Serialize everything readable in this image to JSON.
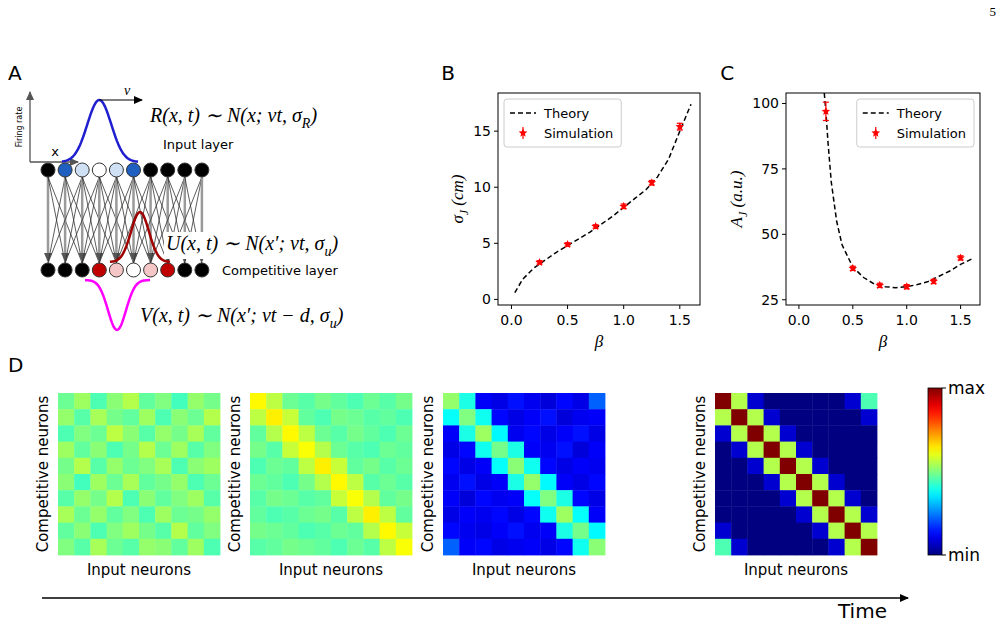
{
  "page_number": "5",
  "panel_a": {
    "letter": "A",
    "y_axis_label": "Firing rate",
    "x_axis_label": "x",
    "velocity_label": "v",
    "input_layer": {
      "label": "Input layer",
      "neuron_colors": [
        "#000000",
        "#1f5fbf",
        "#cfe0f5",
        "#ffffff",
        "#cfe0f5",
        "#1f5fbf",
        "#000000",
        "#000000",
        "#000000",
        "#000000"
      ]
    },
    "competitive_layer": {
      "label": "Competitive layer",
      "neuron_colors": [
        "#000000",
        "#000000",
        "#000000",
        "#c00000",
        "#f5c6c6",
        "#ffffff",
        "#f5c6c6",
        "#c00000",
        "#000000",
        "#000000"
      ]
    },
    "r_equation": [
      {
        "text": "R(x, t) ∼ N(x;  vt, σ"
      },
      {
        "text": "R",
        "sub": true
      },
      {
        "text": ")"
      }
    ],
    "u_equation": [
      {
        "text": "U(x, t) ∼ N(x′; vt, σ"
      },
      {
        "text": "u",
        "sub": true
      },
      {
        "text": ")"
      }
    ],
    "v_equation": [
      {
        "text": "V(x, t) ∼ N(x′; vt − d, σ"
      },
      {
        "text": "u",
        "sub": true
      },
      {
        "text": ")"
      }
    ]
  },
  "chart_data": [
    {
      "panel_label": "B",
      "type": "line",
      "x_label": [
        {
          "text": "β"
        }
      ],
      "y_label": [
        {
          "text": "σ"
        },
        {
          "text": "J",
          "sub": true
        },
        {
          "text": " (cm)"
        }
      ],
      "xlim": [
        -0.12,
        1.68
      ],
      "ylim": [
        -0.5,
        18.4
      ],
      "xticks": [
        {
          "value": 0,
          "label": "0.0"
        },
        {
          "value": 0.5,
          "label": "0.5"
        },
        {
          "value": 1,
          "label": "1.0"
        },
        {
          "value": 1.5,
          "label": "1.5"
        }
      ],
      "yticks": [
        0,
        5,
        10,
        15
      ],
      "legend": "upper left",
      "series": [
        {
          "name": "Theory",
          "color": "#000000",
          "type": "line",
          "line_style": "dashed",
          "x": [
            0.03,
            0.1,
            0.2,
            0.3,
            0.4,
            0.5,
            0.6,
            0.7,
            0.8,
            0.9,
            1.0,
            1.1,
            1.2,
            1.3,
            1.4,
            1.5,
            1.55,
            1.6
          ],
          "values": [
            0.6,
            1.8,
            2.8,
            3.5,
            4.2,
            4.8,
            5.4,
            6.0,
            6.7,
            7.4,
            8.2,
            9.0,
            9.8,
            10.9,
            12.5,
            15.0,
            16.2,
            17.4
          ]
        },
        {
          "name": "Simulation",
          "color": "#ff0000",
          "type": "scatter",
          "marker": "star",
          "x": [
            0.25,
            0.5,
            0.75,
            1.0,
            1.25,
            1.5
          ],
          "values": [
            3.3,
            4.9,
            6.5,
            8.3,
            10.4,
            15.4
          ],
          "errors": [
            0.15,
            0.15,
            0.15,
            0.2,
            0.2,
            0.3
          ]
        }
      ]
    },
    {
      "panel_label": "C",
      "type": "line",
      "x_label": [
        {
          "text": "β"
        }
      ],
      "y_label": [
        {
          "text": "A"
        },
        {
          "text": "J",
          "sub": true
        },
        {
          "text": " (a.u.)"
        }
      ],
      "xlim": [
        -0.12,
        1.68
      ],
      "ylim": [
        23,
        104
      ],
      "xticks": [
        {
          "value": 0,
          "label": "0.0"
        },
        {
          "value": 0.5,
          "label": "0.5"
        },
        {
          "value": 1,
          "label": "1.0"
        },
        {
          "value": 1.5,
          "label": "1.5"
        }
      ],
      "yticks": [
        25,
        50,
        75,
        100
      ],
      "legend": "upper right",
      "series": [
        {
          "name": "Theory",
          "color": "#000000",
          "type": "line",
          "line_style": "dashed",
          "x": [
            0.235,
            0.25,
            0.27,
            0.3,
            0.35,
            0.4,
            0.5,
            0.6,
            0.7,
            0.8,
            0.9,
            1.0,
            1.1,
            1.2,
            1.3,
            1.4,
            1.5,
            1.6
          ],
          "values": [
            104,
            97,
            85,
            70,
            55,
            46,
            37.5,
            33.5,
            31,
            30,
            29.6,
            30,
            30.8,
            32,
            34,
            36,
            38.5,
            40.5
          ]
        },
        {
          "name": "Simulation",
          "color": "#ff0000",
          "type": "scatter",
          "marker": "star",
          "x": [
            0.25,
            0.5,
            0.75,
            1.0,
            1.25,
            1.5
          ],
          "values": [
            97,
            37,
            30.5,
            30,
            32,
            41
          ],
          "errors": [
            3.5,
            0.8,
            0.8,
            0.8,
            0.8,
            0.8
          ]
        }
      ]
    }
  ],
  "panel_d": {
    "letter": "D",
    "time_label": "Time",
    "colorbar": {
      "range": [
        0,
        1
      ],
      "ticks": [
        {
          "value": 0,
          "label": "min"
        },
        {
          "value": 1,
          "label": "max"
        }
      ]
    },
    "heatmaps": [
      {
        "y_label": "Competitive neurons",
        "x_label": "Input neurons",
        "cells": [
          [
            0.48,
            0.53,
            0.45,
            0.51,
            0.55,
            0.47,
            0.5,
            0.44,
            0.52,
            0.49
          ],
          [
            0.52,
            0.46,
            0.54,
            0.49,
            0.47,
            0.53,
            0.45,
            0.51,
            0.48,
            0.55
          ],
          [
            0.45,
            0.5,
            0.48,
            0.56,
            0.51,
            0.46,
            0.52,
            0.49,
            0.54,
            0.47
          ],
          [
            0.53,
            0.47,
            0.51,
            0.45,
            0.49,
            0.55,
            0.48,
            0.53,
            0.46,
            0.5
          ],
          [
            0.49,
            0.55,
            0.46,
            0.52,
            0.48,
            0.5,
            0.54,
            0.45,
            0.51,
            0.53
          ],
          [
            0.51,
            0.44,
            0.53,
            0.48,
            0.54,
            0.47,
            0.49,
            0.52,
            0.45,
            0.48
          ],
          [
            0.46,
            0.52,
            0.49,
            0.55,
            0.45,
            0.51,
            0.47,
            0.5,
            0.53,
            0.46
          ],
          [
            0.54,
            0.48,
            0.52,
            0.47,
            0.5,
            0.45,
            0.53,
            0.48,
            0.49,
            0.52
          ],
          [
            0.47,
            0.51,
            0.45,
            0.5,
            0.53,
            0.49,
            0.46,
            0.55,
            0.47,
            0.5
          ],
          [
            0.5,
            0.46,
            0.54,
            0.48,
            0.46,
            0.52,
            0.51,
            0.47,
            0.53,
            0.45
          ]
        ]
      },
      {
        "y_label": "Competitive neurons",
        "x_label": "Input neurons",
        "cells": [
          [
            0.63,
            0.56,
            0.48,
            0.46,
            0.49,
            0.47,
            0.45,
            0.48,
            0.46,
            0.49
          ],
          [
            0.56,
            0.64,
            0.57,
            0.47,
            0.45,
            0.49,
            0.48,
            0.46,
            0.47,
            0.45
          ],
          [
            0.47,
            0.55,
            0.63,
            0.56,
            0.48,
            0.46,
            0.49,
            0.47,
            0.45,
            0.48
          ],
          [
            0.49,
            0.46,
            0.57,
            0.62,
            0.55,
            0.48,
            0.46,
            0.45,
            0.48,
            0.47
          ],
          [
            0.45,
            0.48,
            0.47,
            0.56,
            0.64,
            0.57,
            0.47,
            0.49,
            0.46,
            0.48
          ],
          [
            0.48,
            0.47,
            0.45,
            0.49,
            0.55,
            0.63,
            0.56,
            0.46,
            0.48,
            0.46
          ],
          [
            0.46,
            0.49,
            0.48,
            0.46,
            0.47,
            0.57,
            0.62,
            0.55,
            0.47,
            0.49
          ],
          [
            0.47,
            0.45,
            0.46,
            0.48,
            0.49,
            0.46,
            0.56,
            0.64,
            0.56,
            0.47
          ],
          [
            0.49,
            0.48,
            0.47,
            0.45,
            0.46,
            0.48,
            0.47,
            0.55,
            0.63,
            0.57
          ],
          [
            0.46,
            0.47,
            0.49,
            0.48,
            0.47,
            0.45,
            0.48,
            0.46,
            0.56,
            0.62
          ]
        ]
      },
      {
        "y_label": "Competitive neurons",
        "x_label": "Input neurons",
        "cells": [
          [
            0.52,
            0.4,
            0.12,
            0.1,
            0.14,
            0.11,
            0.09,
            0.13,
            0.1,
            0.22
          ],
          [
            0.38,
            0.5,
            0.39,
            0.13,
            0.1,
            0.12,
            0.14,
            0.09,
            0.11,
            0.12
          ],
          [
            0.12,
            0.4,
            0.53,
            0.37,
            0.11,
            0.13,
            0.1,
            0.12,
            0.14,
            0.1
          ],
          [
            0.1,
            0.13,
            0.39,
            0.49,
            0.4,
            0.12,
            0.11,
            0.14,
            0.09,
            0.12
          ],
          [
            0.13,
            0.1,
            0.12,
            0.38,
            0.51,
            0.39,
            0.13,
            0.1,
            0.12,
            0.11
          ],
          [
            0.11,
            0.14,
            0.1,
            0.12,
            0.4,
            0.52,
            0.37,
            0.12,
            0.1,
            0.13
          ],
          [
            0.12,
            0.09,
            0.13,
            0.11,
            0.12,
            0.38,
            0.5,
            0.4,
            0.13,
            0.1
          ],
          [
            0.1,
            0.12,
            0.11,
            0.13,
            0.1,
            0.13,
            0.39,
            0.53,
            0.38,
            0.12
          ],
          [
            0.13,
            0.11,
            0.1,
            0.12,
            0.14,
            0.11,
            0.12,
            0.4,
            0.49,
            0.37
          ],
          [
            0.22,
            0.12,
            0.13,
            0.1,
            0.11,
            0.12,
            0.1,
            0.13,
            0.39,
            0.51
          ]
        ]
      },
      {
        "y_label": "Competitive neurons",
        "x_label": "Input neurons",
        "cells": [
          [
            1,
            0.55,
            0.08,
            0,
            0,
            0,
            0,
            0,
            0.08,
            0.45
          ],
          [
            0.55,
            1,
            0.55,
            0.08,
            0,
            0,
            0,
            0,
            0,
            0.08
          ],
          [
            0.08,
            0.55,
            1,
            0.55,
            0.08,
            0,
            0,
            0,
            0,
            0
          ],
          [
            0,
            0.08,
            0.55,
            1,
            0.55,
            0.08,
            0,
            0,
            0,
            0
          ],
          [
            0,
            0,
            0.08,
            0.55,
            1,
            0.55,
            0.08,
            0,
            0,
            0
          ],
          [
            0,
            0,
            0,
            0.08,
            0.55,
            1,
            0.55,
            0.08,
            0,
            0
          ],
          [
            0,
            0,
            0,
            0,
            0.08,
            0.55,
            1,
            0.55,
            0.08,
            0
          ],
          [
            0,
            0,
            0,
            0,
            0,
            0.08,
            0.55,
            1,
            0.55,
            0.08
          ],
          [
            0.08,
            0,
            0,
            0,
            0,
            0,
            0.08,
            0.55,
            1,
            0.55
          ],
          [
            0.45,
            0.08,
            0,
            0,
            0,
            0,
            0,
            0.08,
            0.55,
            1
          ]
        ]
      }
    ]
  }
}
